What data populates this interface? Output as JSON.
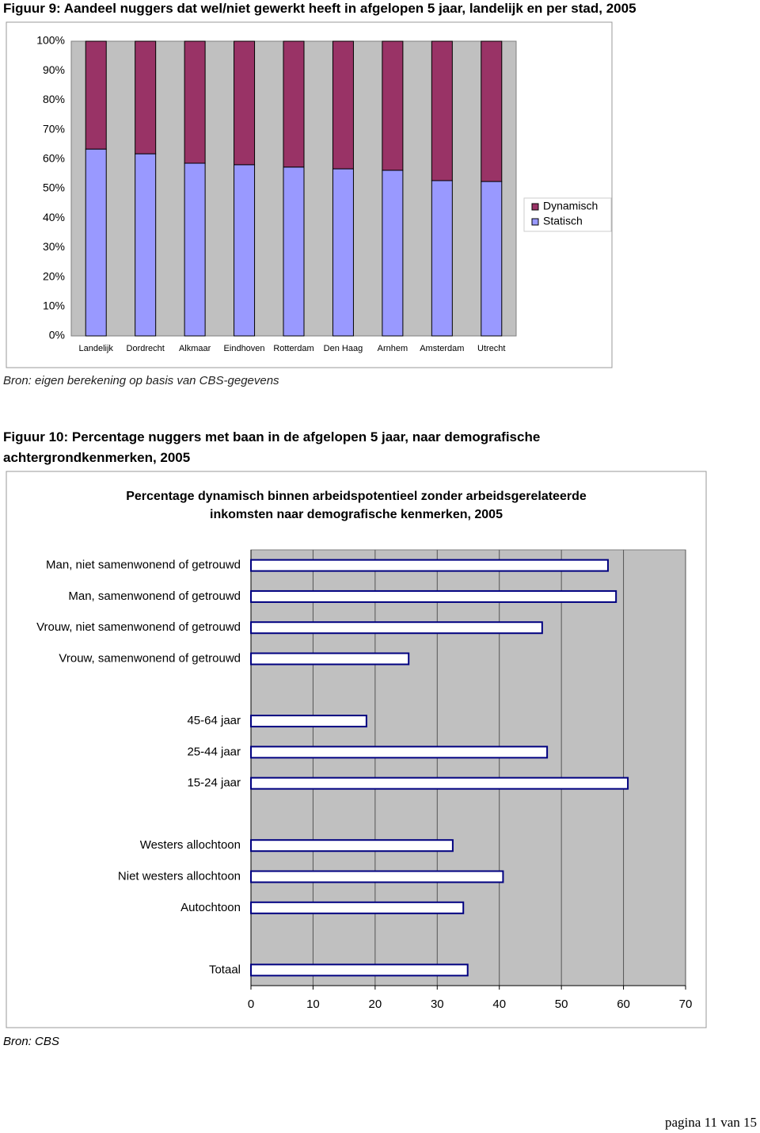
{
  "captions": [
    "Figuur 9: Aandeel nuggers dat wel/niet gewerkt heeft in afgelopen 5 jaar, landelijk en per stad, 2005",
    "Figuur 10: Percentage nuggers met baan in de afgelopen 5 jaar, naar demografische achtergrondkenmerken, 2005"
  ],
  "sources": [
    "Bron: eigen berekening op basis van CBS-gegevens",
    "Bron: CBS"
  ],
  "footer": "pagina 11 van 15",
  "chart_data": [
    {
      "type": "bar",
      "stacked": true,
      "orientation": "vertical",
      "categories": [
        "Landelijk",
        "Dordrecht",
        "Alkmaar",
        "Eindhoven",
        "Rotterdam",
        "Den Haag",
        "Arnhem",
        "Amsterdam",
        "Utrecht"
      ],
      "series": [
        {
          "name": "Statisch",
          "color": "#9999ff",
          "values": [
            63.4,
            61.8,
            58.6,
            58.1,
            57.3,
            56.7,
            56.2,
            52.7,
            52.4
          ]
        },
        {
          "name": "Dynamisch",
          "color": "#993366",
          "values": [
            36.6,
            38.2,
            41.4,
            41.9,
            42.7,
            43.3,
            43.8,
            47.3,
            47.6
          ]
        }
      ],
      "ylim": [
        0,
        100
      ],
      "yticks": [
        {
          "value": 0,
          "label": "0%"
        },
        {
          "value": 10,
          "label": "10%"
        },
        {
          "value": 20,
          "label": "20%"
        },
        {
          "value": 30,
          "label": "30%"
        },
        {
          "value": 40,
          "label": "40%"
        },
        {
          "value": 50,
          "label": "50%"
        },
        {
          "value": 60,
          "label": "60%"
        },
        {
          "value": 70,
          "label": "70%"
        },
        {
          "value": 80,
          "label": "80%"
        },
        {
          "value": 90,
          "label": "90%"
        },
        {
          "value": 100,
          "label": "100%"
        }
      ],
      "grid": false,
      "legend": "right",
      "plot_color": "#c0c0c0"
    },
    {
      "type": "bar",
      "orientation": "horizontal",
      "title": "Percentage dynamisch binnen arbeidspotentieel zonder arbeidsgerelateerde inkomsten naar demografische kenmerken, 2005",
      "categories": [
        "Man, niet samenwonend of getrouwd",
        "Man, samenwonend of getrouwd",
        "Vrouw, niet samenwonend of getrouwd",
        "Vrouw, samenwonend of getrouwd",
        null,
        "45-64 jaar",
        "25-44 jaar",
        "15-24 jaar",
        null,
        "Westers allochtoon",
        "Niet westers allochtoon",
        "Autochtoon",
        null,
        "Totaal"
      ],
      "values": [
        57.5,
        58.8,
        46.9,
        25.4,
        null,
        18.6,
        47.7,
        60.7,
        null,
        32.5,
        40.6,
        34.2,
        null,
        34.9
      ],
      "color": "#ffffff",
      "edge_color": "#000080",
      "xlim": [
        0,
        70
      ],
      "xticks": [
        0,
        10,
        20,
        30,
        40,
        50,
        60,
        70
      ],
      "grid": true,
      "plot_color": "#c0c0c0"
    }
  ]
}
